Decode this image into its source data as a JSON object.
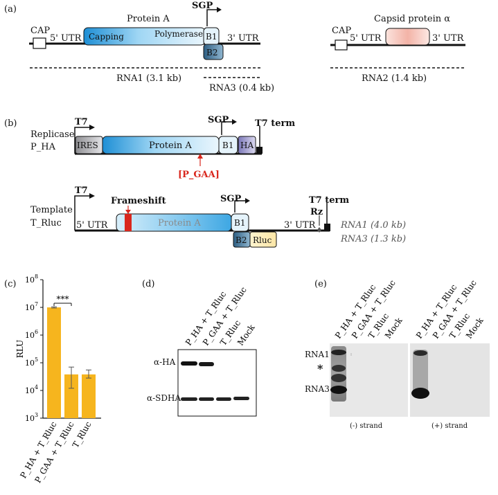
{
  "panels": {
    "a": "(a)",
    "b": "(b)",
    "c": "(c)",
    "d": "(d)",
    "e": "(e)"
  },
  "a": {
    "cap": "CAP",
    "utr5": "5' UTR",
    "utr3": "3' UTR",
    "protein_a": "Protein A",
    "sgp": "SGP",
    "capping": "Capping",
    "polymerase": "Polymerase",
    "b1": "B1",
    "b2": "B2",
    "rna1": "RNA1 (3.1 kb)",
    "rna3": "RNA3 (0.4 kb)",
    "cap2": "CAP",
    "utr5b": "5' UTR",
    "utr3b": "3' UTR",
    "capsid": "Capsid protein α",
    "rna2": "RNA2 (1.4 kb)"
  },
  "b": {
    "t7": "T7",
    "replicase": "Replicase",
    "p_ha": "P_HA",
    "ires": "IRES",
    "protein_a": "Protein A",
    "sgp": "SGP",
    "b1": "B1",
    "ha": "HA",
    "t7term": "T7 term",
    "pgaa": "[P_GAA]",
    "t7_2": "T7",
    "template": "Template",
    "t_rluc": "T_Rluc",
    "frameshift": "Frameshift",
    "utr5": "5' UTR",
    "protein_a2": "Protein A",
    "sgp2": "SGP",
    "b1_2": "B1",
    "utr3": "3' UTR",
    "rz": "Rz",
    "t7term2": "T7 term",
    "b2": "B2",
    "rluc": "Rluc",
    "rna1_len": "RNA1 (4.0 kb)",
    "rna3_len": "RNA3 (1.3 kb)"
  },
  "chart_data": {
    "type": "bar",
    "ylabel": "RLU",
    "yscale": "log",
    "ylim": [
      1000,
      100000000
    ],
    "ytick_exponents": [
      "8",
      "7",
      "6",
      "5",
      "4",
      "3"
    ],
    "ytick_base": "10",
    "categories": [
      "P_HA + T_Rluc",
      "P_GAA + T_Rluc",
      "T_Rluc"
    ],
    "values": [
      10000000,
      38000,
      38000
    ],
    "err_low": [
      9500000,
      12000,
      28000
    ],
    "err_high": [
      10500000,
      70000,
      55000
    ],
    "significance": "***",
    "bar_color": "#f6b51e"
  },
  "d": {
    "lanes": [
      "P_HA + T_Rluc",
      "P_GAA + T_Rluc",
      "T_Rluc",
      "Mock"
    ],
    "rows": [
      "α-HA",
      "α-SDHA"
    ]
  },
  "e": {
    "lanes_left": [
      "P_HA + T_Rluc",
      "P_GAA + T_Rluc",
      "T_Rluc",
      "Mock"
    ],
    "lanes_right": [
      "P_HA + T_Rluc",
      "P_GAA + T_Rluc",
      "T_Rluc",
      "Mock"
    ],
    "rna1": "RNA1",
    "star": "*",
    "rna3": "RNA3",
    "minus": "(-) strand",
    "plus": "(+) strand"
  }
}
